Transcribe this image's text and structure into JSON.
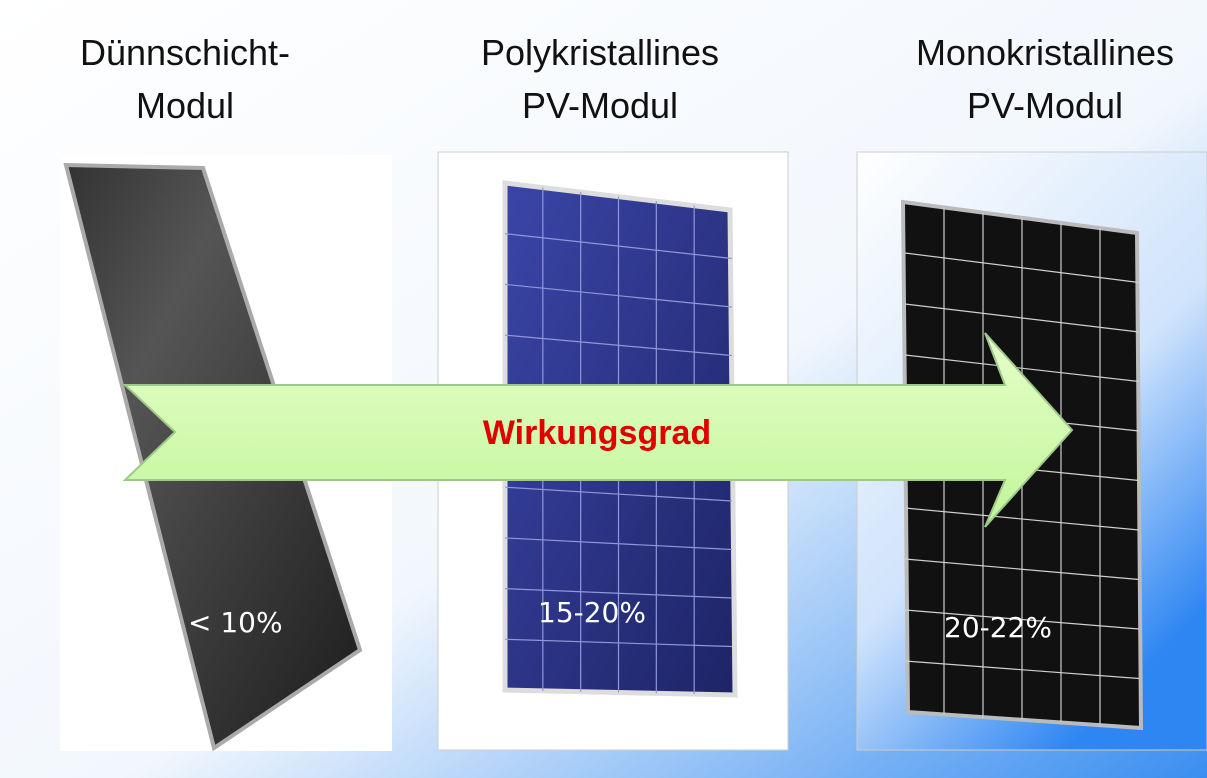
{
  "columns": [
    {
      "title_lines": [
        "Dünnschicht-",
        "Modul"
      ],
      "efficiency": "< 10%"
    },
    {
      "title_lines": [
        "Polykristallines",
        "PV-Modul"
      ],
      "efficiency": "15-20%"
    },
    {
      "title_lines": [
        "Monokristallines",
        "PV-Modul"
      ],
      "efficiency": "20-22%"
    }
  ],
  "arrow_label": "Wirkungsgrad"
}
